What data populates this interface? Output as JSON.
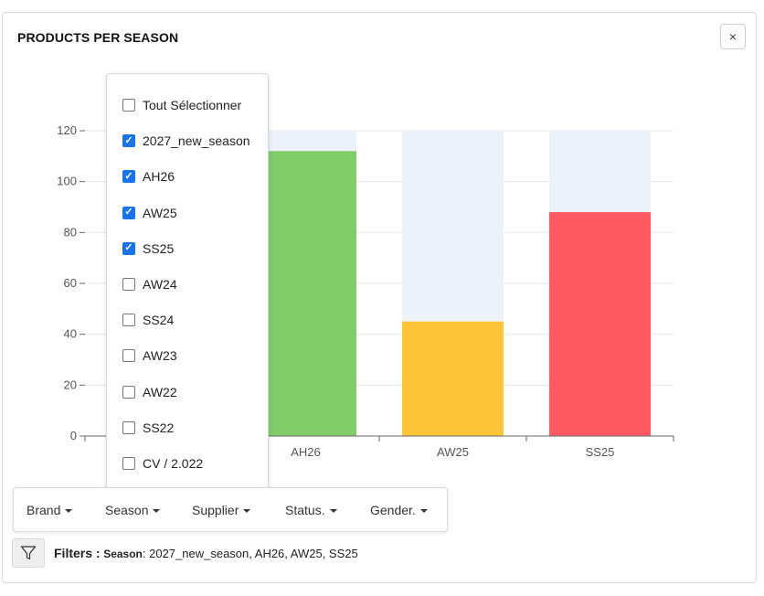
{
  "panel": {
    "title": "PRODUCTS PER SEASON",
    "close_label": "×"
  },
  "chart_data": {
    "type": "bar",
    "categories": [
      "2027_new_season",
      "AH26",
      "AW25",
      "SS25"
    ],
    "x_tick_labels": [
      "",
      "AH26",
      "AW25",
      "SS25"
    ],
    "values": [
      null,
      112,
      45,
      88
    ],
    "colors": [
      "#82cd6a",
      "#82cd6a",
      "#ffc538",
      "#ff5a64"
    ],
    "background_bar_color": "#edf1fa",
    "ylim": [
      0,
      120
    ],
    "y_ticks": [
      "0",
      "20",
      "40",
      "60",
      "80",
      "100",
      "120"
    ],
    "grid": true
  },
  "season_dropdown": {
    "options": [
      {
        "label": "Tout Sélectionner",
        "checked": false
      },
      {
        "label": "2027_new_season",
        "checked": true
      },
      {
        "label": "AH26",
        "checked": true
      },
      {
        "label": "AW25",
        "checked": true
      },
      {
        "label": "SS25",
        "checked": true
      },
      {
        "label": "AW24",
        "checked": false
      },
      {
        "label": "SS24",
        "checked": false
      },
      {
        "label": "AW23",
        "checked": false
      },
      {
        "label": "AW22",
        "checked": false
      },
      {
        "label": "SS22",
        "checked": false
      },
      {
        "label": "CV / 2.022",
        "checked": false
      }
    ]
  },
  "filter_bar": {
    "brand": "Brand",
    "season": "Season",
    "supplier": "Supplier",
    "status": "Status.",
    "gender": "Gender."
  },
  "filters_summary": {
    "label": "Filters :",
    "key": "Season",
    "value": ": 2027_new_season, AH26, AW25, SS25"
  },
  "icons": {
    "filter": "funnel-icon",
    "close": "close-icon",
    "caret": "caret-down-icon"
  }
}
